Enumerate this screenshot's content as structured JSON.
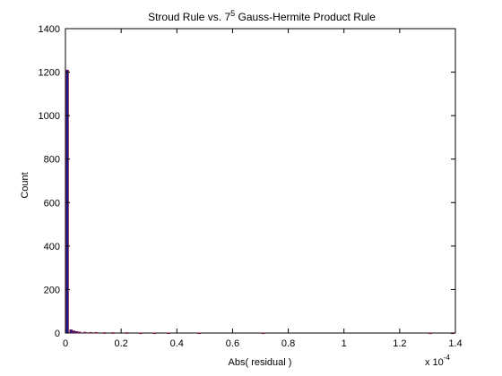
{
  "chart_data": {
    "type": "bar",
    "title": "Stroud Rule vs. 7",
    "title_superscript": "5",
    "title_suffix": " Gauss-Hermite Product Rule",
    "xlabel": "Abs( residual )",
    "ylabel": "Count",
    "xlim": [
      0,
      1.4
    ],
    "ylim": [
      0,
      1400
    ],
    "x_ticks": [
      "0",
      "0.2",
      "0.4",
      "0.6",
      "0.8",
      "1",
      "1.2",
      "1.4"
    ],
    "y_ticks": [
      "0",
      "200",
      "400",
      "600",
      "800",
      "1000",
      "1200",
      "1400"
    ],
    "x_multiplier": "x 10",
    "x_multiplier_exponent": "-4",
    "grid": false,
    "bar_color": "#1a1a8c",
    "bar_edge_color": "#8b1a3a",
    "x": [
      0.005,
      0.02,
      0.03,
      0.04,
      0.05,
      0.07,
      0.09,
      0.11,
      0.14,
      0.17,
      0.22,
      0.27,
      0.32,
      0.37,
      0.48,
      0.71,
      1.31,
      1.39
    ],
    "values": [
      1210,
      15,
      10,
      7,
      5,
      4,
      3,
      3,
      2,
      2,
      2,
      1,
      1,
      1,
      1,
      1,
      1,
      1
    ]
  }
}
